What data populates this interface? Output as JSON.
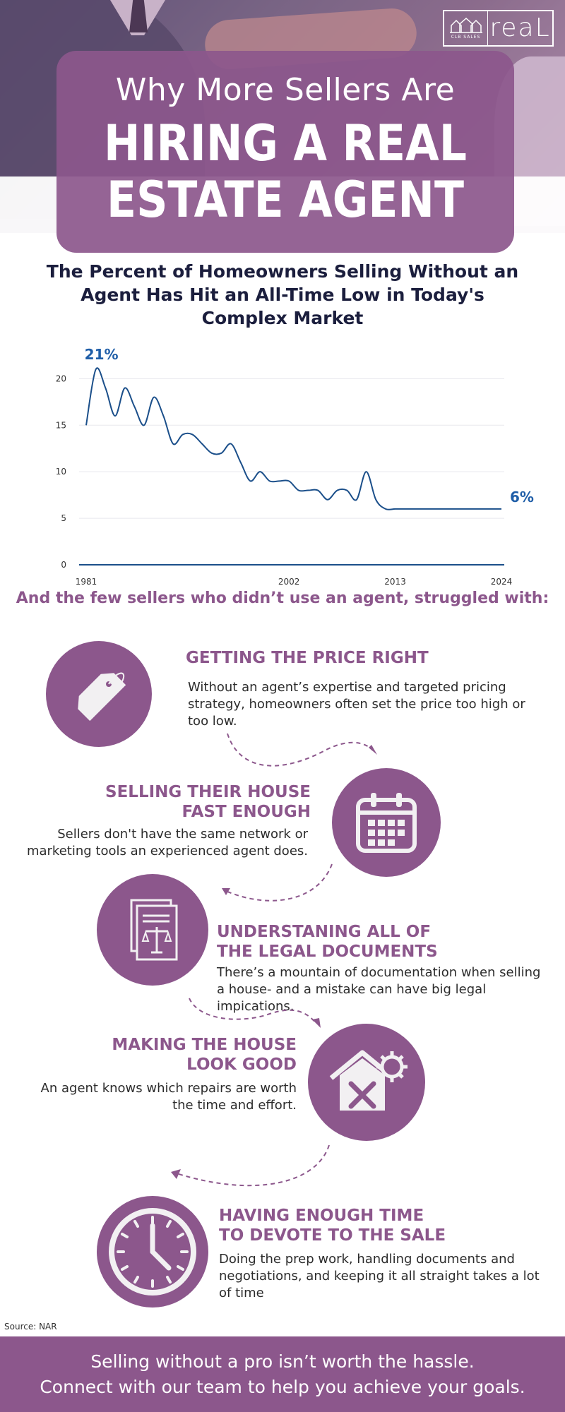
{
  "brand": {
    "logo_small_text": "CLB SALES",
    "logo_word": "reaL"
  },
  "hero": {
    "pre_title": "Why More Sellers Are",
    "main_title_line1": "HIRING A REAL",
    "main_title_line2": "ESTATE AGENT"
  },
  "chart_heading": "The Percent of Homeowners Selling Without an Agent Has Hit an All-Time Low in Today's Complex Market",
  "chart_data": {
    "type": "line",
    "x": [
      1981,
      1982,
      1983,
      1984,
      1985,
      1986,
      1987,
      1988,
      1989,
      1990,
      1991,
      1992,
      1993,
      1994,
      1995,
      1996,
      1997,
      1998,
      1999,
      2000,
      2001,
      2002,
      2003,
      2004,
      2005,
      2006,
      2007,
      2008,
      2009,
      2010,
      2011,
      2012,
      2013,
      2014,
      2015,
      2016,
      2017,
      2018,
      2019,
      2020,
      2021,
      2022,
      2023,
      2024
    ],
    "series": [
      {
        "values": [
          15,
          21,
          19,
          16,
          19,
          17,
          15,
          18,
          16,
          13,
          14,
          14,
          13,
          12,
          12,
          13,
          11,
          9,
          10,
          9,
          9,
          9,
          8,
          8,
          8,
          7,
          8,
          8,
          7,
          10,
          7,
          6,
          6,
          6,
          6,
          6,
          6,
          6,
          6,
          6,
          6,
          6,
          6,
          6
        ]
      }
    ],
    "x_ticks": [
      "1981",
      "2002",
      "2013",
      "2024"
    ],
    "y_ticks": [
      0,
      5,
      10,
      15,
      20
    ],
    "ylim": [
      0,
      22
    ],
    "grid": true,
    "line_color": "#1b4f8a",
    "annotations": [
      {
        "text": "21%"
      },
      {
        "text": "6%"
      }
    ]
  },
  "sub_heading": "And the few sellers who didn’t use an agent, struggled with:",
  "items": [
    {
      "icon": "price-tag-icon",
      "title": "GETTING THE PRICE RIGHT",
      "desc": "Without an agent’s expertise and targeted pricing strategy, homeowners often set the price too high or too low."
    },
    {
      "icon": "calendar-icon",
      "title_line1": "SELLING THEIR HOUSE",
      "title_line2": "FAST ENOUGH",
      "desc": "Sellers don't have the same network or marketing tools an experienced agent does."
    },
    {
      "icon": "legal-document-icon",
      "title_line1": "UNDERSTANING ALL OF",
      "title_line2": "THE LEGAL DOCUMENTS",
      "desc": "There’s a mountain of documentation when selling a house- and a mistake can have big legal impications."
    },
    {
      "icon": "house-repair-icon",
      "title_line1": "MAKING THE HOUSE",
      "title_line2": "LOOK GOOD",
      "desc": "An agent knows which repairs are worth the time and effort."
    },
    {
      "icon": "clock-icon",
      "title_line1": "HAVING ENOUGH TIME",
      "title_line2": "TO DEVOTE TO THE SALE",
      "desc": "Doing the prep work, handling documents and negotiations, and keeping it all straight takes a lot of time"
    }
  ],
  "source": "Source: NAR",
  "footer": {
    "line1": "Selling without a pro isn’t worth the hassle.",
    "line2": "Connect with our team to help you achieve your goals."
  },
  "colors": {
    "accent": "#8c578c",
    "heading": "#1b1e3d",
    "line": "#1b4f8a"
  }
}
